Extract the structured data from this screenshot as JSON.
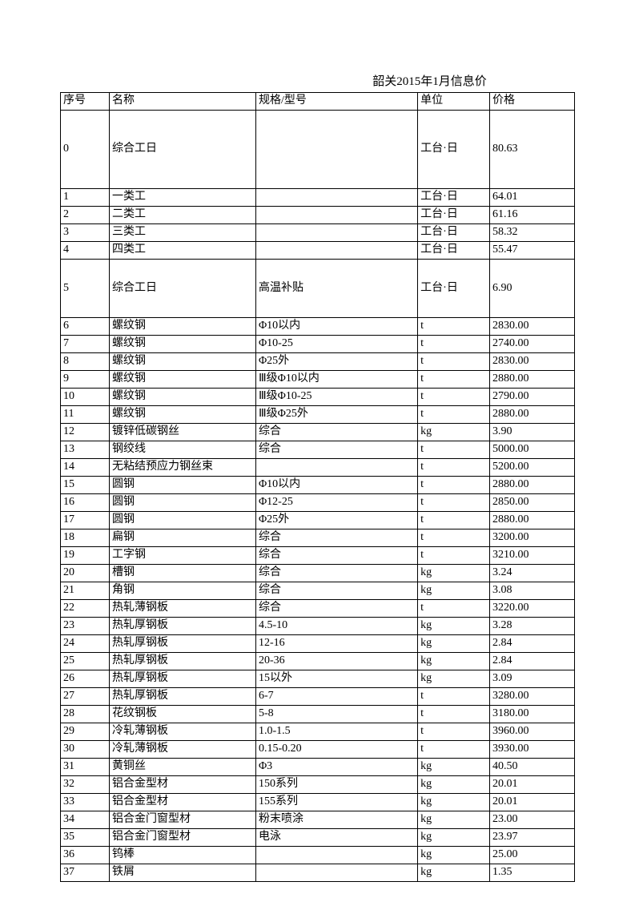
{
  "title": "韶关2015年1月信息价",
  "columns": [
    "序号",
    "名称",
    "规格/型号",
    "单位",
    "价格"
  ],
  "rows": [
    {
      "seq": "0",
      "name": "综合工日",
      "spec": "",
      "unit": "工台·日",
      "price": "80.63",
      "cls": "tall"
    },
    {
      "seq": "1",
      "name": "一类工",
      "spec": "",
      "unit": "工台·日",
      "price": "64.01"
    },
    {
      "seq": "2",
      "name": "二类工",
      "spec": "",
      "unit": "工台·日",
      "price": "61.16"
    },
    {
      "seq": "3",
      "name": "三类工",
      "spec": "",
      "unit": "工台·日",
      "price": "58.32"
    },
    {
      "seq": "4",
      "name": "四类工",
      "spec": "",
      "unit": "工台·日",
      "price": "55.47"
    },
    {
      "seq": "5",
      "name": "综合工日",
      "spec": "高温补贴",
      "unit": "工台·日",
      "price": "6.90",
      "cls": "mid"
    },
    {
      "seq": "6",
      "name": "螺纹钢",
      "spec": "Φ10以内",
      "unit": "t",
      "price": "2830.00"
    },
    {
      "seq": "7",
      "name": "螺纹钢",
      "spec": "Φ10-25",
      "unit": "t",
      "price": "2740.00"
    },
    {
      "seq": "8",
      "name": "螺纹钢",
      "spec": "Φ25外",
      "unit": "t",
      "price": "2830.00"
    },
    {
      "seq": "9",
      "name": "螺纹钢",
      "spec": "Ⅲ级Φ10以内",
      "unit": "t",
      "price": "2880.00"
    },
    {
      "seq": "10",
      "name": "螺纹钢",
      "spec": "Ⅲ级Φ10-25",
      "unit": "t",
      "price": "2790.00"
    },
    {
      "seq": "11",
      "name": "螺纹钢",
      "spec": "Ⅲ级Φ25外",
      "unit": "t",
      "price": "2880.00"
    },
    {
      "seq": "12",
      "name": "镀锌低碳钢丝",
      "spec": "综合",
      "unit": "kg",
      "price": "3.90"
    },
    {
      "seq": "13",
      "name": "钢绞线",
      "spec": "综合",
      "unit": "t",
      "price": "5000.00"
    },
    {
      "seq": "14",
      "name": "无粘结预应力钢丝束",
      "spec": "",
      "unit": "t",
      "price": "5200.00"
    },
    {
      "seq": "15",
      "name": "圆钢",
      "spec": "Φ10以内",
      "unit": "t",
      "price": "2880.00"
    },
    {
      "seq": "16",
      "name": "圆钢",
      "spec": "Φ12-25",
      "unit": "t",
      "price": "2850.00"
    },
    {
      "seq": "17",
      "name": "圆钢",
      "spec": "Φ25外",
      "unit": "t",
      "price": "2880.00"
    },
    {
      "seq": "18",
      "name": "扁钢",
      "spec": "综合",
      "unit": "t",
      "price": "3200.00"
    },
    {
      "seq": "19",
      "name": "工字钢",
      "spec": "综合",
      "unit": "t",
      "price": "3210.00"
    },
    {
      "seq": "20",
      "name": "槽钢",
      "spec": "综合",
      "unit": "kg",
      "price": "3.24"
    },
    {
      "seq": "21",
      "name": "角钢",
      "spec": "综合",
      "unit": "kg",
      "price": "3.08"
    },
    {
      "seq": "22",
      "name": "热轧薄钢板",
      "spec": "综合",
      "unit": "t",
      "price": "3220.00"
    },
    {
      "seq": "23",
      "name": "热轧厚钢板",
      "spec": "4.5-10",
      "unit": "kg",
      "price": "3.28"
    },
    {
      "seq": "24",
      "name": "热轧厚钢板",
      "spec": "12-16",
      "unit": "kg",
      "price": "2.84"
    },
    {
      "seq": "25",
      "name": "热轧厚钢板",
      "spec": "20-36",
      "unit": "kg",
      "price": "2.84"
    },
    {
      "seq": "26",
      "name": "热轧厚钢板",
      "spec": "15以外",
      "unit": "kg",
      "price": "3.09"
    },
    {
      "seq": "27",
      "name": "热轧厚钢板",
      "spec": "6-7",
      "unit": "t",
      "price": "3280.00"
    },
    {
      "seq": "28",
      "name": "花纹钢板",
      "spec": "5-8",
      "unit": "t",
      "price": "3180.00"
    },
    {
      "seq": "29",
      "name": "冷轧薄钢板",
      "spec": "1.0-1.5",
      "unit": "t",
      "price": "3960.00"
    },
    {
      "seq": "30",
      "name": "冷轧薄钢板",
      "spec": "0.15-0.20",
      "unit": "t",
      "price": "3930.00"
    },
    {
      "seq": "31",
      "name": "黄铜丝",
      "spec": "Φ3",
      "unit": "kg",
      "price": "40.50"
    },
    {
      "seq": "32",
      "name": "铝合金型材",
      "spec": "150系列",
      "unit": "kg",
      "price": "20.01"
    },
    {
      "seq": "33",
      "name": "铝合金型材",
      "spec": "155系列",
      "unit": "kg",
      "price": "20.01"
    },
    {
      "seq": "34",
      "name": "铝合金门窗型材",
      "spec": "粉末喷涂",
      "unit": "kg",
      "price": "23.00"
    },
    {
      "seq": "35",
      "name": "铝合金门窗型材",
      "spec": "电泳",
      "unit": "kg",
      "price": "23.97"
    },
    {
      "seq": "36",
      "name": "钨棒",
      "spec": "",
      "unit": "kg",
      "price": "25.00"
    },
    {
      "seq": "37",
      "name": "铁屑",
      "spec": "",
      "unit": "kg",
      "price": "1.35"
    }
  ]
}
